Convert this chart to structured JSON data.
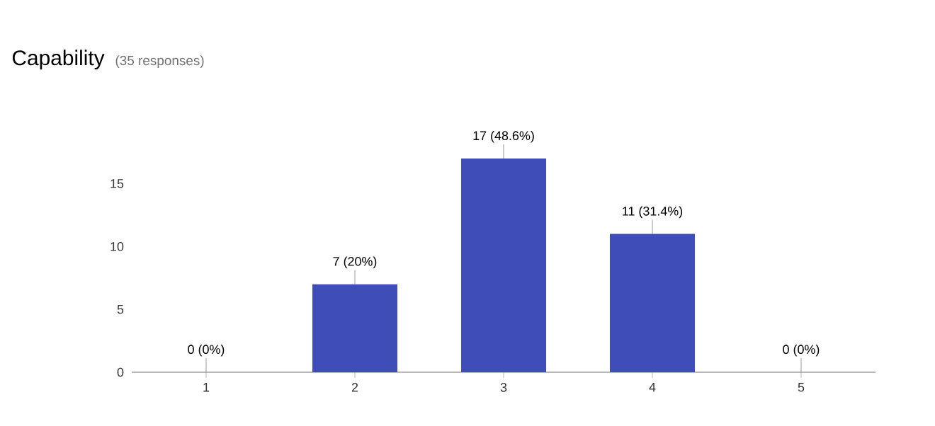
{
  "chart_data": {
    "type": "bar",
    "title": "Capability",
    "subtitle": "(35 responses)",
    "categories": [
      "1",
      "2",
      "3",
      "4",
      "5"
    ],
    "values": [
      0,
      7,
      17,
      11,
      0
    ],
    "value_labels": [
      "0 (0%)",
      "7 (20%)",
      "17 (48.6%)",
      "11 (31.4%)",
      "0 (0%)"
    ],
    "color": "#3f4db8",
    "ylim": [
      0,
      17
    ],
    "yticks": [
      0,
      5,
      10,
      15
    ]
  }
}
